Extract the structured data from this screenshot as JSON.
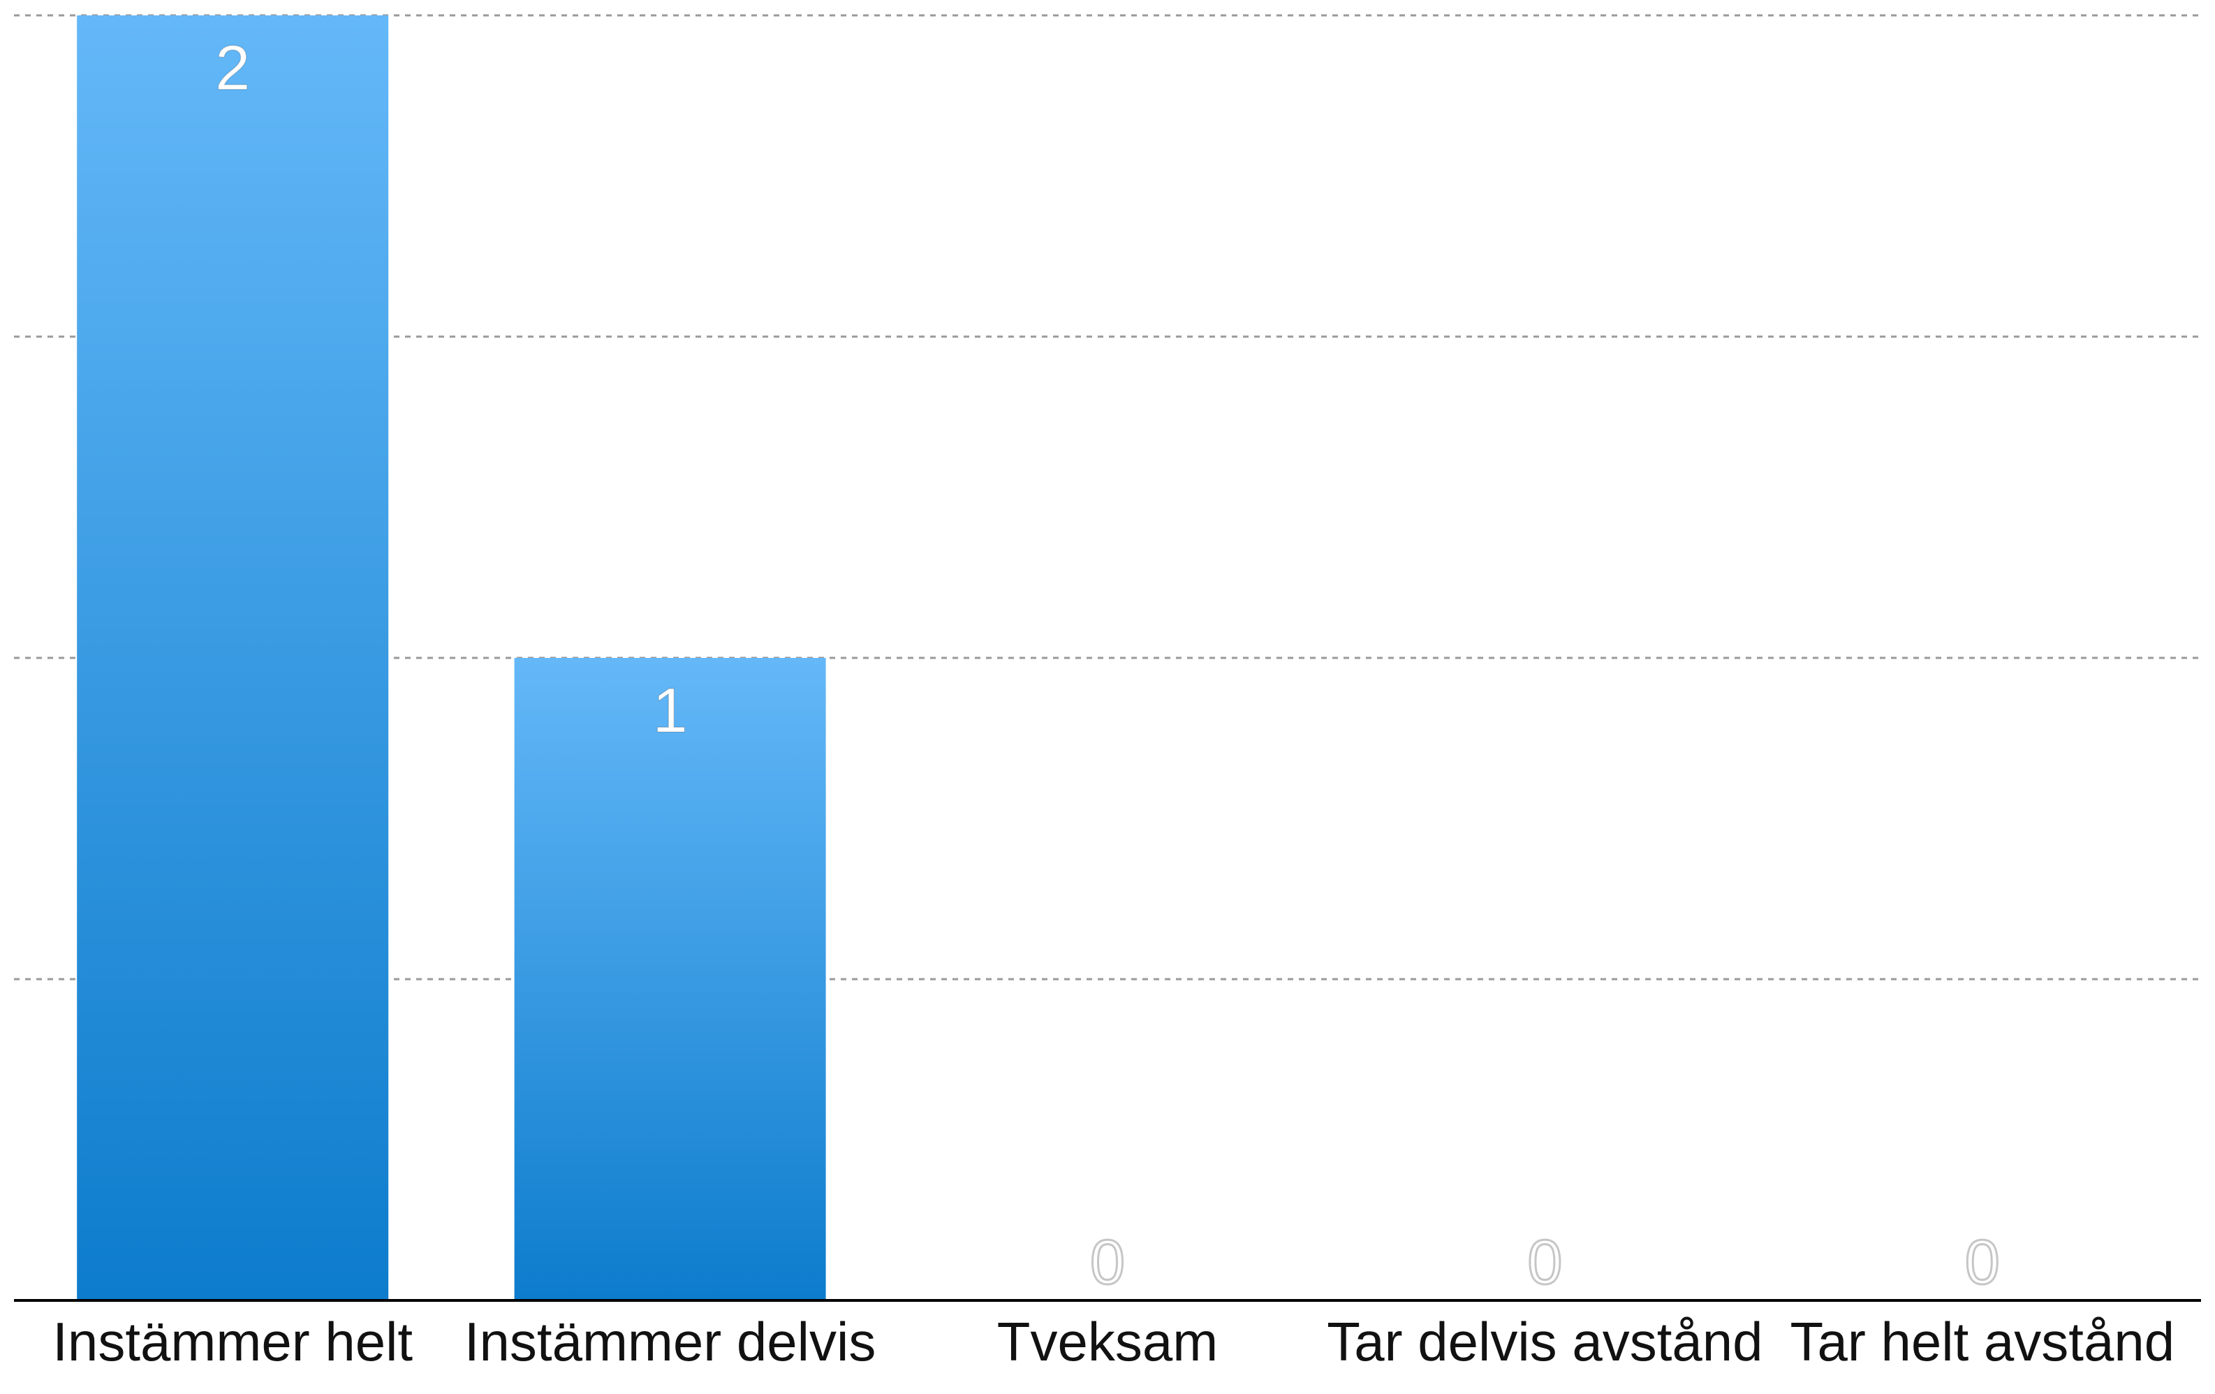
{
  "chart_data": {
    "type": "bar",
    "categories": [
      "Instämmer helt",
      "Instämmer delvis",
      "Tveksam",
      "Tar delvis avstånd",
      "Tar helt avstånd"
    ],
    "values": [
      2,
      1,
      0,
      0,
      0
    ],
    "data_labels": [
      "2",
      "1",
      "0",
      "0",
      "0"
    ],
    "title": "",
    "xlabel": "",
    "ylabel": "",
    "ylim": [
      0,
      2
    ],
    "grid": true,
    "legend": "none",
    "colors": {
      "bar_top": "#64b8f8",
      "bar_bottom": "#0d7ccc",
      "grid": "#9a9a9a",
      "axis": "#000000"
    }
  }
}
